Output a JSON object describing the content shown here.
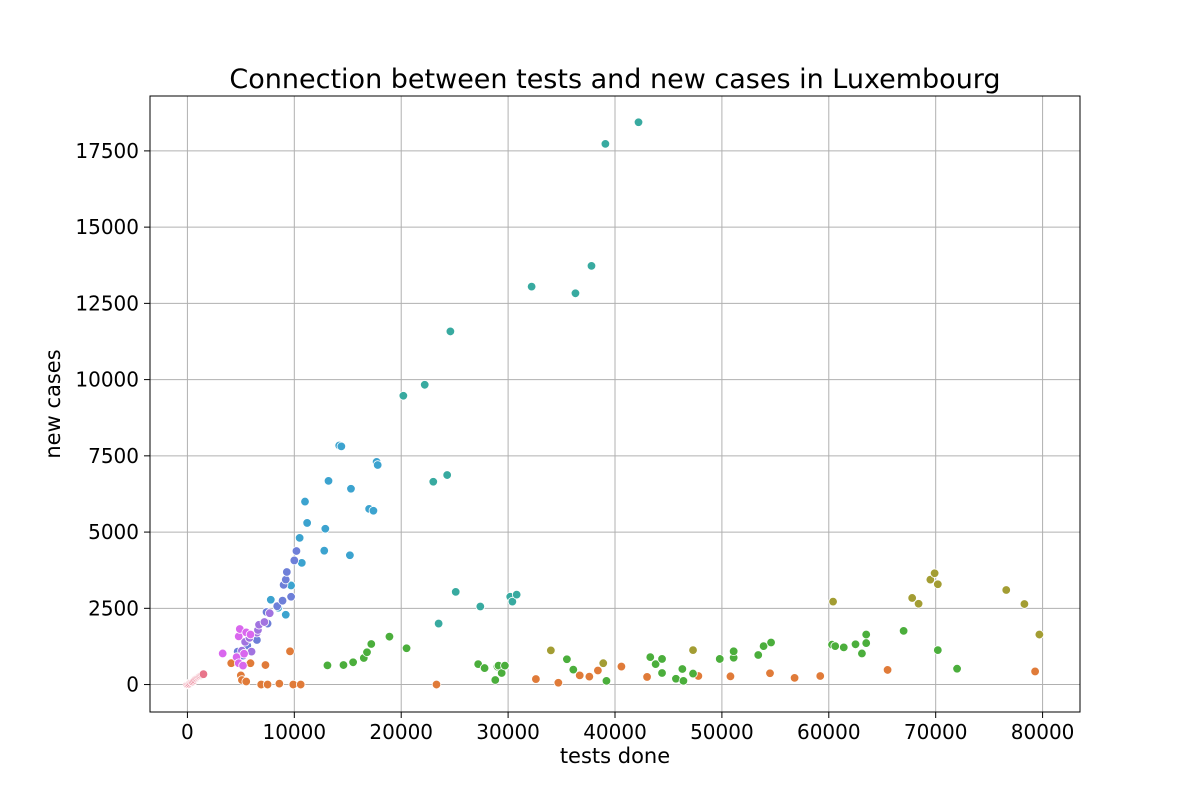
{
  "chart_data": {
    "type": "scatter",
    "title": "Connection between tests and new cases in Luxembourg",
    "xlabel": "tests done",
    "ylabel": "new cases",
    "xlim": [
      -3500,
      83500
    ],
    "ylim": [
      -900,
      19300
    ],
    "xticks": [
      0,
      10000,
      20000,
      30000,
      40000,
      50000,
      60000,
      70000,
      80000
    ],
    "yticks": [
      0,
      2500,
      5000,
      7500,
      10000,
      12500,
      15000,
      17500
    ],
    "xtick_labels": [
      "0",
      "10000",
      "20000",
      "30000",
      "40000",
      "50000",
      "60000",
      "70000",
      "80000"
    ],
    "ytick_labels": [
      "0",
      "2500",
      "5000",
      "7500",
      "10000",
      "12500",
      "15000",
      "17500"
    ],
    "grid": true,
    "legend": "none",
    "series": [
      {
        "color": "#e8748a",
        "points": [
          [
            0,
            0
          ],
          [
            100,
            10
          ],
          [
            200,
            30
          ],
          [
            300,
            60
          ],
          [
            400,
            90
          ],
          [
            500,
            100
          ],
          [
            600,
            130
          ],
          [
            700,
            160
          ],
          [
            800,
            200
          ],
          [
            900,
            220
          ],
          [
            1000,
            240
          ],
          [
            1100,
            260
          ],
          [
            1200,
            280
          ],
          [
            1300,
            300
          ],
          [
            1400,
            320
          ],
          [
            1500,
            340
          ]
        ]
      },
      {
        "color": "#e07b39",
        "points": [
          [
            4100,
            700
          ],
          [
            5000,
            300
          ],
          [
            5100,
            150
          ],
          [
            5500,
            100
          ],
          [
            5900,
            700
          ],
          [
            6900,
            0
          ],
          [
            7300,
            640
          ],
          [
            7500,
            0
          ],
          [
            8600,
            30
          ],
          [
            9600,
            1090
          ],
          [
            9900,
            0
          ],
          [
            10600,
            0
          ],
          [
            23300,
            0
          ],
          [
            32600,
            180
          ],
          [
            34700,
            60
          ],
          [
            36700,
            300
          ],
          [
            37600,
            260
          ],
          [
            38400,
            460
          ],
          [
            40600,
            590
          ],
          [
            43000,
            250
          ],
          [
            47800,
            280
          ],
          [
            50800,
            270
          ],
          [
            54500,
            370
          ],
          [
            56800,
            220
          ],
          [
            59200,
            280
          ],
          [
            65500,
            480
          ],
          [
            79300,
            430
          ]
        ]
      },
      {
        "color": "#a39d33",
        "points": [
          [
            34000,
            1120
          ],
          [
            38900,
            700
          ],
          [
            47300,
            1130
          ],
          [
            60400,
            2720
          ],
          [
            67800,
            2840
          ],
          [
            68400,
            2650
          ],
          [
            69500,
            3440
          ],
          [
            69900,
            3650
          ],
          [
            70200,
            3290
          ],
          [
            76600,
            3100
          ],
          [
            78300,
            2640
          ],
          [
            79700,
            1640
          ]
        ]
      },
      {
        "color": "#4bae3c",
        "points": [
          [
            13100,
            630
          ],
          [
            14600,
            640
          ],
          [
            15500,
            730
          ],
          [
            16500,
            870
          ],
          [
            16800,
            1060
          ],
          [
            17200,
            1330
          ],
          [
            18900,
            1570
          ],
          [
            20500,
            1190
          ],
          [
            27200,
            670
          ],
          [
            27800,
            540
          ],
          [
            28800,
            150
          ],
          [
            29000,
            590
          ],
          [
            29100,
            620
          ],
          [
            29400,
            380
          ],
          [
            29700,
            620
          ],
          [
            35500,
            830
          ],
          [
            36100,
            490
          ],
          [
            39200,
            120
          ],
          [
            43300,
            900
          ],
          [
            43800,
            670
          ],
          [
            44400,
            380
          ],
          [
            44400,
            840
          ],
          [
            45700,
            190
          ],
          [
            46300,
            510
          ],
          [
            46400,
            120
          ],
          [
            47300,
            360
          ],
          [
            49800,
            840
          ],
          [
            51100,
            880
          ],
          [
            51100,
            1090
          ],
          [
            53400,
            970
          ],
          [
            53900,
            1260
          ],
          [
            54600,
            1380
          ],
          [
            60300,
            1310
          ],
          [
            60600,
            1260
          ],
          [
            61400,
            1220
          ],
          [
            62500,
            1320
          ],
          [
            63100,
            1020
          ],
          [
            63500,
            1640
          ],
          [
            63500,
            1360
          ],
          [
            67000,
            1760
          ],
          [
            70200,
            1130
          ],
          [
            72000,
            520
          ]
        ]
      },
      {
        "color": "#38aaa0",
        "points": [
          [
            20200,
            9470
          ],
          [
            22200,
            9830
          ],
          [
            23000,
            6650
          ],
          [
            23500,
            2000
          ],
          [
            24300,
            6870
          ],
          [
            24600,
            11580
          ],
          [
            25100,
            3040
          ],
          [
            27400,
            2560
          ],
          [
            30200,
            2880
          ],
          [
            30400,
            2720
          ],
          [
            30800,
            2950
          ],
          [
            32200,
            13050
          ],
          [
            36300,
            12830
          ],
          [
            37800,
            13730
          ],
          [
            39100,
            17730
          ],
          [
            42200,
            18440
          ]
        ]
      },
      {
        "color": "#3ca3cf",
        "points": [
          [
            7800,
            2780
          ],
          [
            8500,
            2520
          ],
          [
            9200,
            2290
          ],
          [
            9700,
            3250
          ],
          [
            10500,
            4810
          ],
          [
            10700,
            3990
          ],
          [
            11000,
            6000
          ],
          [
            11200,
            5300
          ],
          [
            12900,
            5110
          ],
          [
            12800,
            4390
          ],
          [
            13200,
            6680
          ],
          [
            14200,
            7840
          ],
          [
            14400,
            7810
          ],
          [
            15200,
            4240
          ],
          [
            15300,
            6420
          ],
          [
            17000,
            5760
          ],
          [
            17400,
            5700
          ],
          [
            17700,
            7300
          ],
          [
            17800,
            7200
          ]
        ]
      },
      {
        "color": "#6e7fd8",
        "points": [
          [
            4700,
            1080
          ],
          [
            5200,
            950
          ],
          [
            5600,
            1280
          ],
          [
            6500,
            1460
          ],
          [
            7500,
            2000
          ],
          [
            7400,
            2380
          ],
          [
            8400,
            2570
          ],
          [
            8900,
            2750
          ],
          [
            9000,
            3270
          ],
          [
            9200,
            3440
          ],
          [
            9300,
            3690
          ],
          [
            9700,
            2880
          ],
          [
            10000,
            4070
          ],
          [
            10200,
            4380
          ]
        ]
      },
      {
        "color": "#a173e0",
        "points": [
          [
            5100,
            1110
          ],
          [
            5400,
            1400
          ],
          [
            5800,
            1530
          ],
          [
            6000,
            1080
          ],
          [
            6500,
            1700
          ],
          [
            6600,
            1790
          ],
          [
            6700,
            1960
          ],
          [
            7200,
            2050
          ],
          [
            7700,
            2340
          ]
        ]
      },
      {
        "color": "#d967ee",
        "points": [
          [
            3300,
            1020
          ],
          [
            4600,
            900
          ],
          [
            4800,
            1580
          ],
          [
            4900,
            1820
          ],
          [
            4800,
            700
          ],
          [
            5200,
            620
          ],
          [
            5300,
            1010
          ],
          [
            5500,
            1710
          ],
          [
            5900,
            1640
          ]
        ]
      }
    ]
  }
}
